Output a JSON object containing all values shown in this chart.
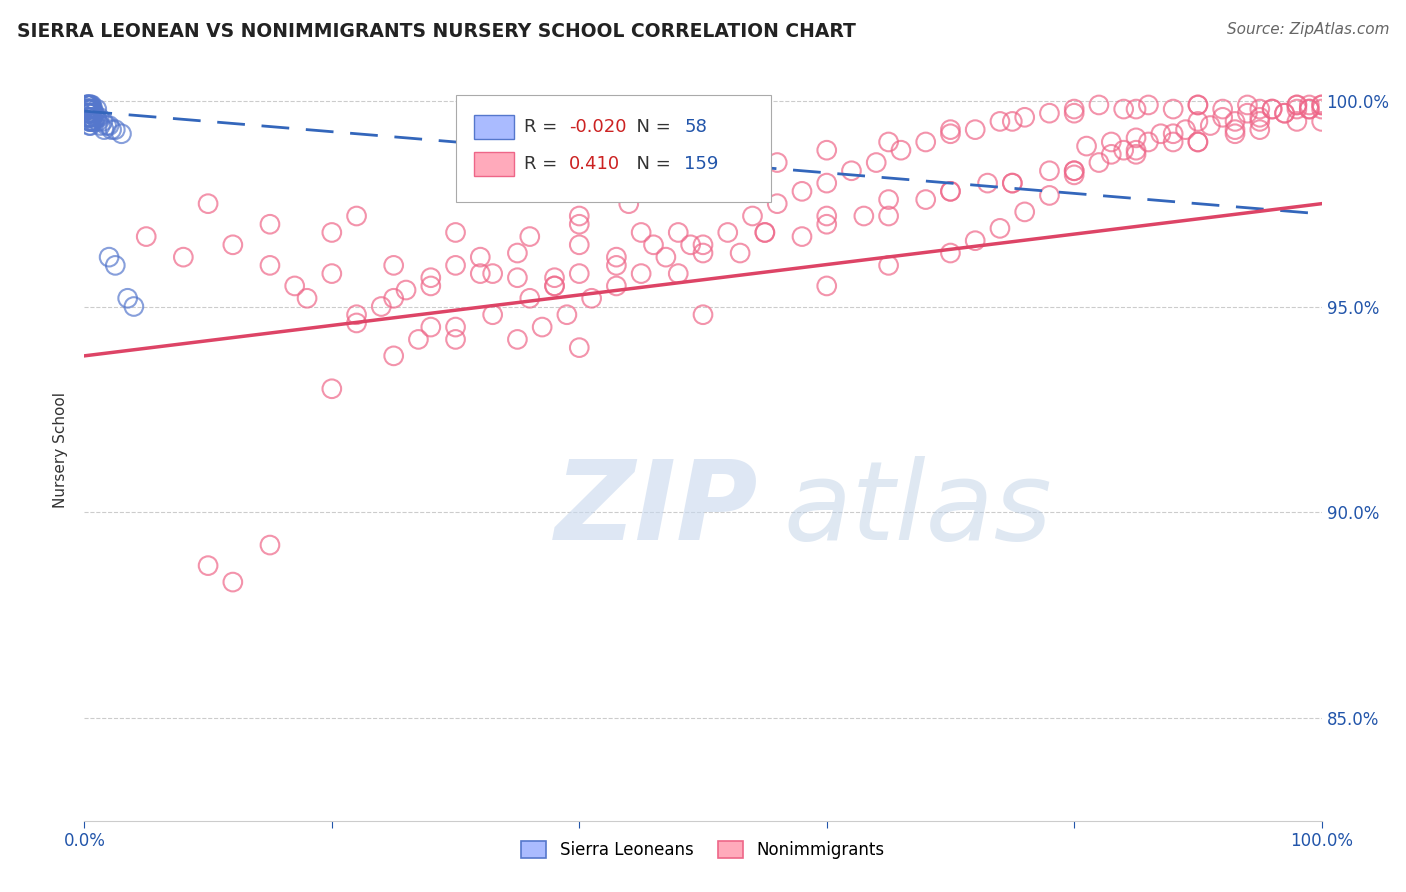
{
  "title": "SIERRA LEONEAN VS NONIMMIGRANTS NURSERY SCHOOL CORRELATION CHART",
  "source_text": "Source: ZipAtlas.com",
  "ylabel": "Nursery School",
  "legend_labels": [
    "Sierra Leoneans",
    "Nonimmigrants"
  ],
  "legend_R": [
    -0.02,
    0.41
  ],
  "legend_N": [
    58,
    159
  ],
  "blue_color": "#aabbff",
  "pink_color": "#ffaabb",
  "blue_edge_color": "#5577cc",
  "pink_edge_color": "#ee6688",
  "blue_line_color": "#3366bb",
  "pink_line_color": "#dd4466",
  "xmin": 0.0,
  "xmax": 1.0,
  "ymin": 0.825,
  "ymax": 1.005,
  "yticks": [
    0.85,
    0.9,
    0.95,
    1.0
  ],
  "ytick_labels": [
    "85.0%",
    "90.0%",
    "95.0%",
    "100.0%"
  ],
  "blue_trend": [
    0.9975,
    0.9725
  ],
  "pink_trend": [
    0.938,
    0.975
  ],
  "blue_scatter_x": [
    0.003,
    0.003,
    0.003,
    0.003,
    0.003,
    0.003,
    0.003,
    0.003,
    0.003,
    0.003,
    0.004,
    0.004,
    0.004,
    0.004,
    0.004,
    0.004,
    0.004,
    0.004,
    0.005,
    0.005,
    0.005,
    0.005,
    0.005,
    0.005,
    0.005,
    0.005,
    0.006,
    0.006,
    0.006,
    0.006,
    0.007,
    0.007,
    0.007,
    0.008,
    0.008,
    0.009,
    0.01,
    0.01,
    0.011,
    0.012,
    0.013,
    0.015,
    0.016,
    0.018,
    0.02,
    0.022,
    0.025,
    0.03,
    0.002,
    0.002,
    0.002,
    0.003,
    0.003,
    0.004,
    0.035,
    0.04,
    0.025,
    0.02
  ],
  "blue_scatter_y": [
    0.999,
    0.999,
    0.998,
    0.998,
    0.998,
    0.997,
    0.997,
    0.997,
    0.996,
    0.996,
    0.999,
    0.998,
    0.997,
    0.997,
    0.996,
    0.995,
    0.995,
    0.994,
    0.999,
    0.999,
    0.998,
    0.998,
    0.997,
    0.996,
    0.995,
    0.994,
    0.999,
    0.998,
    0.996,
    0.995,
    0.998,
    0.997,
    0.995,
    0.997,
    0.995,
    0.996,
    0.998,
    0.996,
    0.995,
    0.996,
    0.994,
    0.995,
    0.993,
    0.994,
    0.994,
    0.993,
    0.993,
    0.992,
    0.999,
    0.999,
    0.998,
    0.999,
    0.998,
    0.998,
    0.952,
    0.95,
    0.96,
    0.962
  ],
  "pink_scatter_x": [
    0.05,
    0.08,
    0.1,
    0.12,
    0.15,
    0.17,
    0.2,
    0.22,
    0.25,
    0.28,
    0.3,
    0.32,
    0.35,
    0.38,
    0.4,
    0.15,
    0.2,
    0.25,
    0.3,
    0.35,
    0.4,
    0.45,
    0.5,
    0.55,
    0.6,
    0.65,
    0.7,
    0.75,
    0.8,
    0.85,
    0.9,
    0.95,
    1.0,
    0.18,
    0.22,
    0.28,
    0.33,
    0.38,
    0.43,
    0.48,
    0.53,
    0.58,
    0.63,
    0.68,
    0.73,
    0.78,
    0.83,
    0.88,
    0.93,
    0.98,
    0.7,
    0.75,
    0.8,
    0.85,
    0.9,
    0.93,
    0.95,
    0.97,
    0.98,
    0.99,
    1.0,
    0.97,
    0.95,
    0.93,
    0.91,
    0.89,
    0.87,
    0.85,
    0.83,
    0.81,
    0.5,
    0.55,
    0.6,
    0.65,
    0.1,
    0.15,
    0.12,
    0.2,
    0.3,
    0.4,
    0.5,
    0.6,
    0.65,
    0.7,
    0.72,
    0.74,
    0.76,
    0.78,
    0.8,
    0.82,
    0.84,
    0.86,
    0.88,
    0.9,
    0.92,
    0.94,
    0.96,
    0.98,
    0.99,
    1.0,
    0.35,
    0.37,
    0.39,
    0.41,
    0.43,
    0.45,
    0.47,
    0.49,
    0.52,
    0.54,
    0.56,
    0.58,
    0.6,
    0.62,
    0.64,
    0.66,
    0.68,
    0.7,
    0.72,
    0.74,
    0.76,
    0.78,
    0.8,
    0.82,
    0.84,
    0.86,
    0.88,
    0.9,
    0.92,
    0.94,
    0.96,
    0.98,
    0.99,
    1.0,
    0.25,
    0.27,
    0.3,
    0.33,
    0.36,
    0.38,
    0.4,
    0.43,
    0.46,
    0.48,
    0.22,
    0.24,
    0.26,
    0.28,
    0.32,
    0.36,
    0.4,
    0.44,
    0.48,
    0.52,
    0.56,
    0.6,
    0.65,
    0.7,
    0.75,
    0.8,
    0.85,
    0.9,
    0.95
  ],
  "pink_scatter_y": [
    0.967,
    0.962,
    0.975,
    0.965,
    0.97,
    0.955,
    0.968,
    0.972,
    0.96,
    0.955,
    0.968,
    0.958,
    0.963,
    0.957,
    0.97,
    0.96,
    0.958,
    0.952,
    0.96,
    0.957,
    0.965,
    0.968,
    0.965,
    0.968,
    0.97,
    0.972,
    0.978,
    0.98,
    0.983,
    0.988,
    0.99,
    0.993,
    0.995,
    0.952,
    0.948,
    0.945,
    0.958,
    0.955,
    0.96,
    0.958,
    0.963,
    0.967,
    0.972,
    0.976,
    0.98,
    0.983,
    0.987,
    0.99,
    0.992,
    0.995,
    0.978,
    0.98,
    0.983,
    0.987,
    0.99,
    0.993,
    0.995,
    0.997,
    0.998,
    0.999,
    0.998,
    0.997,
    0.996,
    0.995,
    0.994,
    0.993,
    0.992,
    0.991,
    0.99,
    0.989,
    0.963,
    0.968,
    0.972,
    0.976,
    0.887,
    0.892,
    0.883,
    0.93,
    0.942,
    0.94,
    0.948,
    0.955,
    0.96,
    0.963,
    0.966,
    0.969,
    0.973,
    0.977,
    0.982,
    0.985,
    0.988,
    0.99,
    0.992,
    0.995,
    0.996,
    0.997,
    0.998,
    0.999,
    0.998,
    0.999,
    0.942,
    0.945,
    0.948,
    0.952,
    0.955,
    0.958,
    0.962,
    0.965,
    0.968,
    0.972,
    0.975,
    0.978,
    0.98,
    0.983,
    0.985,
    0.988,
    0.99,
    0.992,
    0.993,
    0.995,
    0.996,
    0.997,
    0.998,
    0.999,
    0.998,
    0.999,
    0.998,
    0.999,
    0.998,
    0.999,
    0.998,
    0.999,
    0.998,
    0.999,
    0.938,
    0.942,
    0.945,
    0.948,
    0.952,
    0.955,
    0.958,
    0.962,
    0.965,
    0.968,
    0.946,
    0.95,
    0.954,
    0.957,
    0.962,
    0.967,
    0.972,
    0.975,
    0.978,
    0.982,
    0.985,
    0.988,
    0.99,
    0.993,
    0.995,
    0.997,
    0.998,
    0.999,
    0.998
  ]
}
